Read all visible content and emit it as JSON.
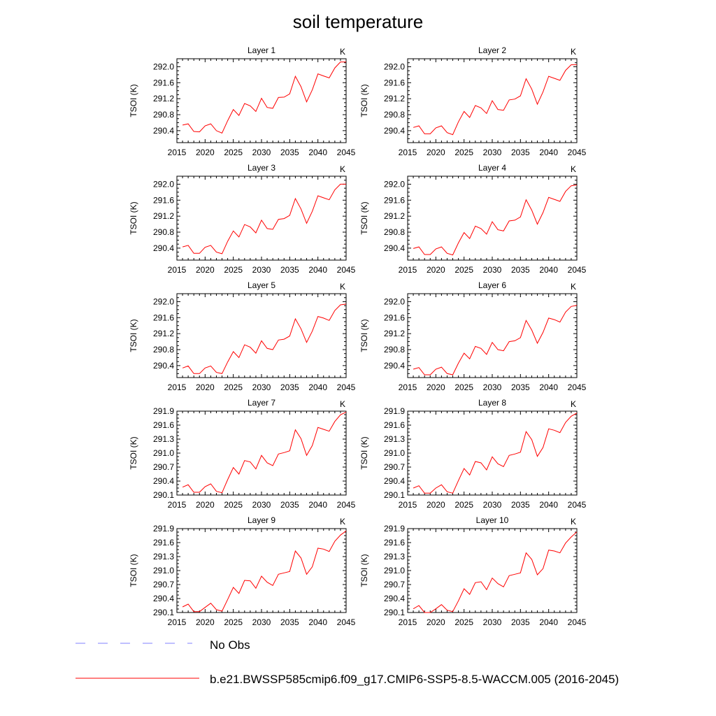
{
  "title": "soil temperature",
  "legend": {
    "entries": [
      {
        "label": "No Obs",
        "color": "#8080ff",
        "style": "dashed"
      },
      {
        "label": "b.e21.BWSSP585cmip6.f09_g17.CMIP6-SSP5-8.5-WACCM.005 (2016-2045)",
        "color": "#ff0000",
        "style": "solid"
      }
    ]
  },
  "chart_data": [
    {
      "type": "line",
      "title": "Layer 1",
      "units_label": "K",
      "ylabel": "TSOI  (K)",
      "xlim": [
        2015,
        2045
      ],
      "ylim": [
        290.1,
        292.2
      ],
      "xticks": [
        2015,
        2020,
        2025,
        2030,
        2035,
        2040,
        2045
      ],
      "yticks": [
        290.4,
        290.8,
        291.2,
        291.6,
        292.0
      ],
      "series": [
        {
          "color": "#ff0000",
          "x": [
            2016,
            2017,
            2018,
            2019,
            2020,
            2021,
            2022,
            2023,
            2024,
            2025,
            2026,
            2027,
            2028,
            2029,
            2030,
            2031,
            2032,
            2033,
            2034,
            2035,
            2036,
            2037,
            2038,
            2039,
            2040,
            2041,
            2042,
            2043,
            2044,
            2045
          ],
          "values": [
            290.54,
            290.57,
            290.38,
            290.37,
            290.52,
            290.57,
            290.4,
            290.34,
            290.65,
            290.93,
            290.78,
            291.08,
            291.02,
            290.88,
            291.21,
            290.98,
            290.96,
            291.23,
            291.24,
            291.32,
            291.76,
            291.5,
            291.12,
            291.42,
            291.82,
            291.77,
            291.72,
            291.97,
            292.12,
            292.12
          ]
        }
      ]
    },
    {
      "type": "line",
      "title": "Layer 2",
      "units_label": "K",
      "ylabel": "TSOI  (K)",
      "xlim": [
        2015,
        2045
      ],
      "ylim": [
        290.1,
        292.2
      ],
      "xticks": [
        2015,
        2020,
        2025,
        2030,
        2035,
        2040,
        2045
      ],
      "yticks": [
        290.4,
        290.8,
        291.2,
        291.6,
        292.0
      ],
      "series": [
        {
          "color": "#ff0000",
          "x": [
            2016,
            2017,
            2018,
            2019,
            2020,
            2021,
            2022,
            2023,
            2024,
            2025,
            2026,
            2027,
            2028,
            2029,
            2030,
            2031,
            2032,
            2033,
            2034,
            2035,
            2036,
            2037,
            2038,
            2039,
            2040,
            2041,
            2042,
            2043,
            2044,
            2045
          ],
          "values": [
            290.48,
            290.52,
            290.32,
            290.32,
            290.47,
            290.52,
            290.35,
            290.3,
            290.62,
            290.88,
            290.73,
            291.03,
            290.97,
            290.83,
            291.15,
            290.93,
            290.91,
            291.17,
            291.19,
            291.27,
            291.7,
            291.44,
            291.06,
            291.37,
            291.76,
            291.71,
            291.66,
            291.91,
            292.05,
            292.05
          ]
        }
      ]
    },
    {
      "type": "line",
      "title": "Layer 3",
      "units_label": "K",
      "ylabel": "TSOI  (K)",
      "xlim": [
        2015,
        2045
      ],
      "ylim": [
        290.1,
        292.2
      ],
      "xticks": [
        2015,
        2020,
        2025,
        2030,
        2035,
        2040,
        2045
      ],
      "yticks": [
        290.4,
        290.8,
        291.2,
        291.6,
        292.0
      ],
      "series": [
        {
          "color": "#ff0000",
          "x": [
            2016,
            2017,
            2018,
            2019,
            2020,
            2021,
            2022,
            2023,
            2024,
            2025,
            2026,
            2027,
            2028,
            2029,
            2030,
            2031,
            2032,
            2033,
            2034,
            2035,
            2036,
            2037,
            2038,
            2039,
            2040,
            2041,
            2042,
            2043,
            2044,
            2045
          ],
          "values": [
            290.43,
            290.47,
            290.27,
            290.27,
            290.42,
            290.47,
            290.3,
            290.26,
            290.57,
            290.83,
            290.68,
            290.99,
            290.93,
            290.78,
            291.1,
            290.89,
            290.87,
            291.12,
            291.14,
            291.22,
            291.64,
            291.38,
            291.02,
            291.32,
            291.71,
            291.66,
            291.61,
            291.86,
            292.0,
            292.0
          ]
        }
      ]
    },
    {
      "type": "line",
      "title": "Layer 4",
      "units_label": "K",
      "ylabel": "TSOI  (K)",
      "xlim": [
        2015,
        2045
      ],
      "ylim": [
        290.1,
        292.2
      ],
      "xticks": [
        2015,
        2020,
        2025,
        2030,
        2035,
        2040,
        2045
      ],
      "yticks": [
        290.4,
        290.8,
        291.2,
        291.6,
        292.0
      ],
      "series": [
        {
          "color": "#ff0000",
          "x": [
            2016,
            2017,
            2018,
            2019,
            2020,
            2021,
            2022,
            2023,
            2024,
            2025,
            2026,
            2027,
            2028,
            2029,
            2030,
            2031,
            2032,
            2033,
            2034,
            2035,
            2036,
            2037,
            2038,
            2039,
            2040,
            2041,
            2042,
            2043,
            2044,
            2045
          ],
          "values": [
            290.39,
            290.43,
            290.24,
            290.24,
            290.38,
            290.43,
            290.27,
            290.23,
            290.53,
            290.79,
            290.64,
            290.95,
            290.89,
            290.75,
            291.06,
            290.86,
            290.83,
            291.08,
            291.1,
            291.18,
            291.61,
            291.35,
            291.0,
            291.29,
            291.67,
            291.62,
            291.57,
            291.82,
            291.96,
            291.98
          ]
        }
      ]
    },
    {
      "type": "line",
      "title": "Layer 5",
      "units_label": "K",
      "ylabel": "TSOI  (K)",
      "xlim": [
        2015,
        2045
      ],
      "ylim": [
        290.1,
        292.2
      ],
      "xticks": [
        2015,
        2020,
        2025,
        2030,
        2035,
        2040,
        2045
      ],
      "yticks": [
        290.4,
        290.8,
        291.2,
        291.6,
        292.0
      ],
      "series": [
        {
          "color": "#ff0000",
          "x": [
            2016,
            2017,
            2018,
            2019,
            2020,
            2021,
            2022,
            2023,
            2024,
            2025,
            2026,
            2027,
            2028,
            2029,
            2030,
            2031,
            2032,
            2033,
            2034,
            2035,
            2036,
            2037,
            2038,
            2039,
            2040,
            2041,
            2042,
            2043,
            2044,
            2045
          ],
          "values": [
            290.34,
            290.39,
            290.2,
            290.2,
            290.34,
            290.39,
            290.23,
            290.2,
            290.49,
            290.75,
            290.6,
            290.92,
            290.86,
            290.71,
            291.02,
            290.83,
            290.8,
            291.04,
            291.06,
            291.14,
            291.57,
            291.32,
            290.98,
            291.26,
            291.63,
            291.59,
            291.53,
            291.78,
            291.92,
            291.94
          ]
        }
      ]
    },
    {
      "type": "line",
      "title": "Layer 6",
      "units_label": "K",
      "ylabel": "TSOI  (K)",
      "xlim": [
        2015,
        2045
      ],
      "ylim": [
        290.1,
        292.2
      ],
      "xticks": [
        2015,
        2020,
        2025,
        2030,
        2035,
        2040,
        2045
      ],
      "yticks": [
        290.4,
        290.8,
        291.2,
        291.6,
        292.0
      ],
      "series": [
        {
          "color": "#ff0000",
          "x": [
            2016,
            2017,
            2018,
            2019,
            2020,
            2021,
            2022,
            2023,
            2024,
            2025,
            2026,
            2027,
            2028,
            2029,
            2030,
            2031,
            2032,
            2033,
            2034,
            2035,
            2036,
            2037,
            2038,
            2039,
            2040,
            2041,
            2042,
            2043,
            2044,
            2045
          ],
          "values": [
            290.31,
            290.35,
            290.17,
            290.17,
            290.31,
            290.36,
            290.2,
            290.17,
            290.46,
            290.71,
            290.57,
            290.88,
            290.83,
            290.68,
            290.98,
            290.8,
            290.77,
            291.0,
            291.02,
            291.1,
            291.53,
            291.29,
            290.96,
            291.23,
            291.59,
            291.55,
            291.49,
            291.74,
            291.88,
            291.91
          ]
        }
      ]
    },
    {
      "type": "line",
      "title": "Layer 7",
      "units_label": "K",
      "ylabel": "TSOI  (K)",
      "xlim": [
        2015,
        2045
      ],
      "ylim": [
        290.1,
        291.9
      ],
      "xticks": [
        2015,
        2020,
        2025,
        2030,
        2035,
        2040,
        2045
      ],
      "yticks": [
        290.1,
        290.4,
        290.7,
        291.0,
        291.3,
        291.6,
        291.9
      ],
      "series": [
        {
          "color": "#ff0000",
          "x": [
            2016,
            2017,
            2018,
            2019,
            2020,
            2021,
            2022,
            2023,
            2024,
            2025,
            2026,
            2027,
            2028,
            2029,
            2030,
            2031,
            2032,
            2033,
            2034,
            2035,
            2036,
            2037,
            2038,
            2039,
            2040,
            2041,
            2042,
            2043,
            2044,
            2045
          ],
          "values": [
            290.27,
            290.32,
            290.16,
            290.16,
            290.28,
            290.34,
            290.18,
            290.15,
            290.43,
            290.69,
            290.55,
            290.84,
            290.81,
            290.66,
            290.95,
            290.79,
            290.73,
            290.98,
            291.01,
            291.05,
            291.5,
            291.31,
            290.95,
            291.16,
            291.55,
            291.51,
            291.47,
            291.68,
            291.82,
            291.88
          ]
        }
      ]
    },
    {
      "type": "line",
      "title": "Layer 8",
      "units_label": "K",
      "ylabel": "TSOI  (K)",
      "xlim": [
        2015,
        2045
      ],
      "ylim": [
        290.1,
        291.9
      ],
      "xticks": [
        2015,
        2020,
        2025,
        2030,
        2035,
        2040,
        2045
      ],
      "yticks": [
        290.1,
        290.4,
        290.7,
        291.0,
        291.3,
        291.6,
        291.9
      ],
      "series": [
        {
          "color": "#ff0000",
          "x": [
            2016,
            2017,
            2018,
            2019,
            2020,
            2021,
            2022,
            2023,
            2024,
            2025,
            2026,
            2027,
            2028,
            2029,
            2030,
            2031,
            2032,
            2033,
            2034,
            2035,
            2036,
            2037,
            2038,
            2039,
            2040,
            2041,
            2042,
            2043,
            2044,
            2045
          ],
          "values": [
            290.25,
            290.3,
            290.14,
            290.14,
            290.25,
            290.32,
            290.17,
            290.14,
            290.41,
            290.67,
            290.53,
            290.82,
            290.79,
            290.64,
            290.92,
            290.77,
            290.71,
            290.95,
            290.98,
            291.02,
            291.46,
            291.29,
            290.93,
            291.12,
            291.52,
            291.49,
            291.44,
            291.66,
            291.79,
            291.86
          ]
        }
      ]
    },
    {
      "type": "line",
      "title": "Layer 9",
      "units_label": "K",
      "ylabel": "TSOI  (K)",
      "xlim": [
        2015,
        2045
      ],
      "ylim": [
        290.1,
        291.9
      ],
      "xticks": [
        2015,
        2020,
        2025,
        2030,
        2035,
        2040,
        2045
      ],
      "yticks": [
        290.1,
        290.4,
        290.7,
        291.0,
        291.3,
        291.6,
        291.9
      ],
      "series": [
        {
          "color": "#ff0000",
          "x": [
            2016,
            2017,
            2018,
            2019,
            2020,
            2021,
            2022,
            2023,
            2024,
            2025,
            2026,
            2027,
            2028,
            2029,
            2030,
            2031,
            2032,
            2033,
            2034,
            2035,
            2036,
            2037,
            2038,
            2039,
            2040,
            2041,
            2042,
            2043,
            2044,
            2045
          ],
          "values": [
            290.22,
            290.28,
            290.12,
            290.12,
            290.21,
            290.3,
            290.16,
            290.13,
            290.38,
            290.64,
            290.51,
            290.79,
            290.78,
            290.62,
            290.88,
            290.75,
            290.68,
            290.92,
            290.95,
            290.98,
            291.42,
            291.27,
            290.92,
            291.08,
            291.48,
            291.46,
            291.41,
            291.63,
            291.76,
            291.85
          ]
        }
      ]
    },
    {
      "type": "line",
      "title": "Layer 10",
      "units_label": "K",
      "ylabel": "TSOI  (K)",
      "xlim": [
        2015,
        2045
      ],
      "ylim": [
        290.1,
        291.9
      ],
      "xticks": [
        2015,
        2020,
        2025,
        2030,
        2035,
        2040,
        2045
      ],
      "yticks": [
        290.1,
        290.4,
        290.7,
        291.0,
        291.3,
        291.6,
        291.9
      ],
      "series": [
        {
          "color": "#ff0000",
          "x": [
            2016,
            2017,
            2018,
            2019,
            2020,
            2021,
            2022,
            2023,
            2024,
            2025,
            2026,
            2027,
            2028,
            2029,
            2030,
            2031,
            2032,
            2033,
            2034,
            2035,
            2036,
            2037,
            2038,
            2039,
            2040,
            2041,
            2042,
            2043,
            2044,
            2045
          ],
          "values": [
            290.18,
            290.25,
            290.1,
            290.1,
            290.18,
            290.27,
            290.15,
            290.12,
            290.35,
            290.61,
            290.49,
            290.74,
            290.76,
            290.59,
            290.84,
            290.72,
            290.65,
            290.89,
            290.92,
            290.95,
            291.38,
            291.24,
            290.91,
            291.04,
            291.44,
            291.42,
            291.38,
            291.59,
            291.72,
            291.83
          ]
        }
      ]
    }
  ]
}
